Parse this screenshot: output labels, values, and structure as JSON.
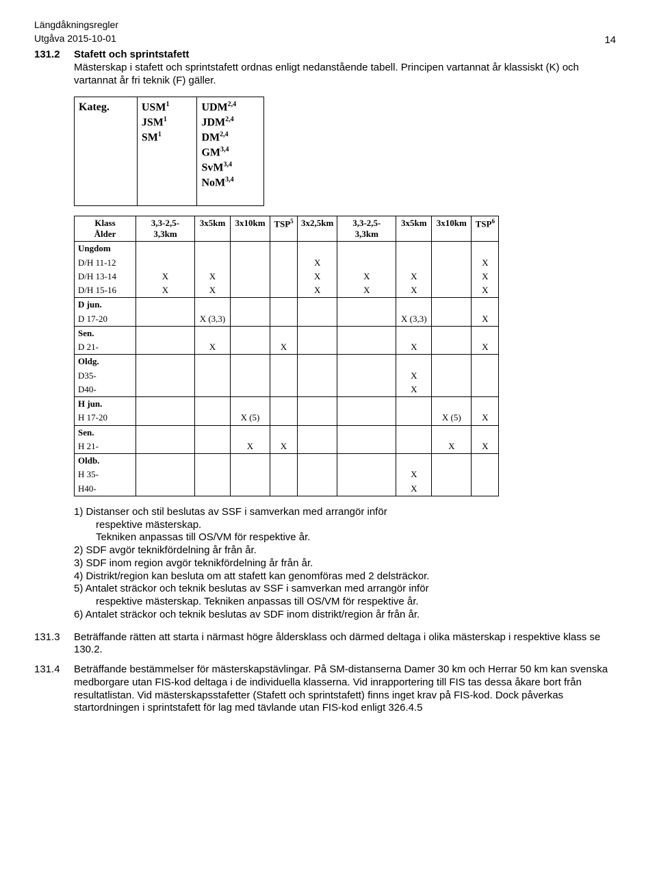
{
  "header": {
    "title": "Längdåkningsregler",
    "edition": "Utgåva 2015-10-01",
    "page_number": "14"
  },
  "section_131_2": {
    "num": "131.2",
    "title": "Stafett och sprintstafett",
    "body": "Mästerskap i stafett och sprintstafett ordnas enligt nedanstående tabell. Principen vartannat år klassiskt (K) och vartannat år fri teknik (F) gäller."
  },
  "kateg": {
    "label": "Kateg.",
    "left_lines": [
      "USM",
      "JSM",
      "SM"
    ],
    "left_sups": [
      "1",
      "1",
      "1"
    ],
    "right_lines": [
      "UDM",
      "JDM",
      "DM",
      "GM",
      "SvM",
      "NoM"
    ],
    "right_sups": [
      "2,4",
      "2,4",
      "2,4",
      "3,4",
      "3,4",
      "3,4"
    ]
  },
  "table": {
    "head1_a": "Klass",
    "head1_b": "Ålder",
    "cols": [
      "3,3-2,5-3,3km",
      "3x5km",
      "3x10km",
      "TSP",
      "3x2,5km",
      "3,3-2,5-3,3km",
      "3x5km",
      "3x10km",
      "TSP"
    ],
    "col_sups": [
      "",
      "",
      "",
      "5",
      "",
      "",
      "",
      "",
      "6"
    ],
    "rows": [
      {
        "group": "Ungdom"
      },
      {
        "label": "D/H 11-12",
        "c": [
          "",
          "",
          "",
          "",
          "X",
          "",
          "",
          "",
          "X"
        ]
      },
      {
        "label": "D/H 13-14",
        "c": [
          "X",
          "X",
          "",
          "",
          "X",
          "X",
          "X",
          "",
          "X"
        ]
      },
      {
        "label": "D/H 15-16",
        "c": [
          "X",
          "X",
          "",
          "",
          "X",
          "X",
          "X",
          "",
          "X"
        ]
      },
      {
        "group": "D jun."
      },
      {
        "label": "D 17-20",
        "c": [
          "",
          "X (3,3)",
          "",
          "",
          "",
          "",
          "X (3,3)",
          "",
          "X"
        ]
      },
      {
        "group": "Sen."
      },
      {
        "label": "D 21-",
        "c": [
          "",
          "X",
          "",
          "X",
          "",
          "",
          "X",
          "",
          "X"
        ]
      },
      {
        "group": "Oldg."
      },
      {
        "label": "D35-",
        "c": [
          "",
          "",
          "",
          "",
          "",
          "",
          "X",
          "",
          ""
        ]
      },
      {
        "label": "D40-",
        "c": [
          "",
          "",
          "",
          "",
          "",
          "",
          "X",
          "",
          ""
        ]
      },
      {
        "group": "H jun."
      },
      {
        "label": "H 17-20",
        "c": [
          "",
          "",
          "X (5)",
          "",
          "",
          "",
          "",
          "X (5)",
          "X"
        ]
      },
      {
        "group": "Sen."
      },
      {
        "label": "H 21-",
        "c": [
          "",
          "",
          "X",
          "X",
          "",
          "",
          "",
          "X",
          "X"
        ]
      },
      {
        "group": "Oldb."
      },
      {
        "label": "H 35-",
        "c": [
          "",
          "",
          "",
          "",
          "",
          "",
          "X",
          "",
          ""
        ]
      },
      {
        "label": "H40-",
        "c": [
          "",
          "",
          "",
          "",
          "",
          "",
          "X",
          "",
          ""
        ]
      }
    ]
  },
  "notes": {
    "n1a": "1) Distanser och stil beslutas av SSF i samverkan med arrangör inför",
    "n1b": "respektive mästerskap.",
    "n1c": "Tekniken anpassas till OS/VM för respektive år.",
    "n2": "2) SDF avgör teknikfördelning år från år.",
    "n3": "3) SDF inom region avgör teknikfördelning år från år.",
    "n4": "4) Distrikt/region kan besluta om att stafett kan genomföras med 2 delsträckor.",
    "n5a": "5) Antalet sträckor och teknik beslutas av SSF i samverkan med arrangör inför",
    "n5b": "respektive mästerskap. Tekniken anpassas till OS/VM för respektive år.",
    "n6": "6) Antalet sträckor och teknik beslutas av SDF inom distrikt/region år från år."
  },
  "section_131_3": {
    "num": "131.3",
    "body": "Beträffande rätten att starta i närmast högre åldersklass och därmed deltaga i olika mästerskap i respektive klass se 130.2."
  },
  "section_131_4": {
    "num": "131.4",
    "body": "Beträffande bestämmelser för mästerskapstävlingar. På SM-distanserna Damer 30 km och Herrar 50 km kan svenska medborgare utan FIS-kod deltaga i de individuella klasserna. Vid inrapportering till FIS tas dessa åkare bort från resultatlistan. Vid mästerskapsstafetter (Stafett och sprintstafett) finns inget krav på FIS-kod. Dock påverkas startordningen i sprintstafett för lag med tävlande utan FIS-kod enligt 326.4.5"
  }
}
